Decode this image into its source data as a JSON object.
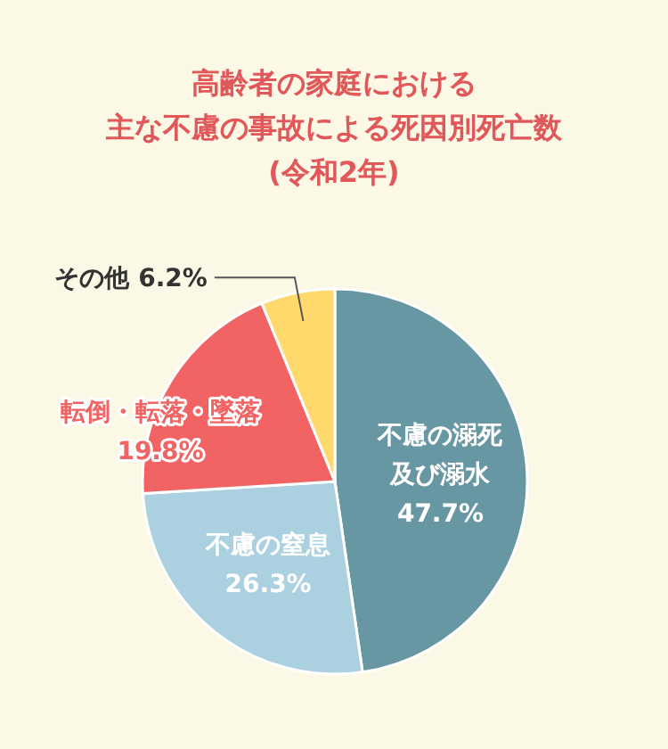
{
  "chart_data": {
    "type": "pie",
    "title": "高齢者の家庭における",
    "subtitle": "主な不慮の事故による死因別死亡数",
    "annotations": [
      "(令和2年)"
    ],
    "categories": [
      "不慮の溺死及び溺水",
      "不慮の窒息",
      "転倒・転落・墜落",
      "その他"
    ],
    "values": [
      47.7,
      26.3,
      19.8,
      6.2
    ],
    "colors": [
      "#6897a4",
      "#abd0df",
      "#f26464",
      "#ffd96b"
    ],
    "value_labels": [
      "47.7%",
      "26.3%",
      "19.8%",
      "6.2%"
    ]
  }
}
